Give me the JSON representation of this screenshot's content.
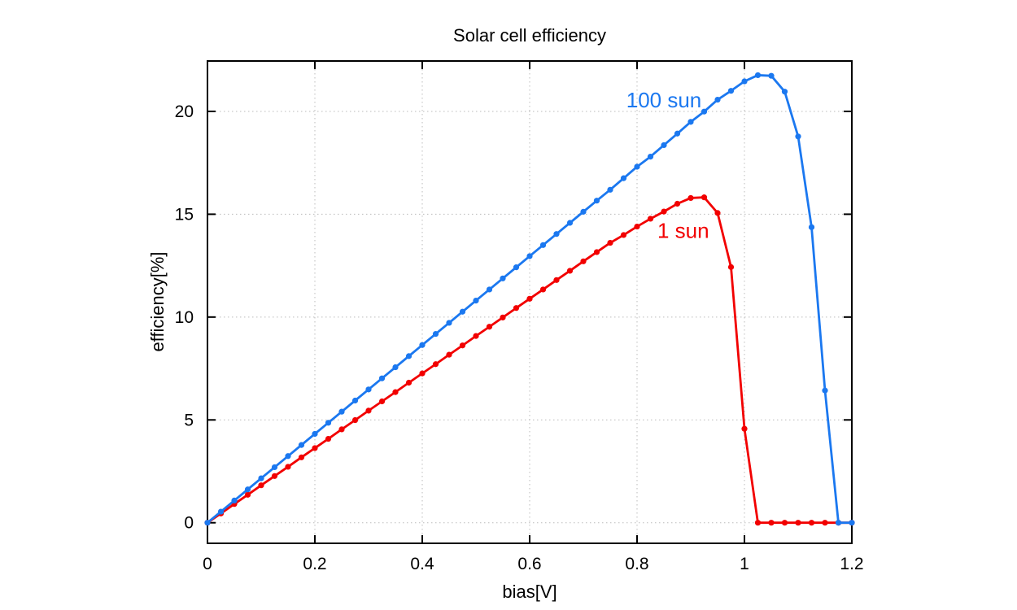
{
  "chart_data": {
    "type": "line",
    "title": "Solar cell efficiency",
    "xlabel": "bias[V]",
    "ylabel": "efficiency[%]",
    "xlim": [
      0,
      1.2
    ],
    "ylim": [
      -1.0,
      22.45
    ],
    "grid": "dotted",
    "legend_position": "inline-annotations",
    "colors": {
      "grid": "#bbbbbb",
      "axis": "#000000",
      "text": "#000000",
      "background": "#ffffff"
    },
    "x_ticks": {
      "values": [
        0,
        0.2,
        0.4,
        0.6,
        0.8,
        1.0,
        1.2
      ],
      "labels": [
        "0",
        "0.2",
        "0.4",
        "0.6",
        "0.8",
        "1",
        "1.2"
      ]
    },
    "y_ticks": {
      "values": [
        0,
        5,
        10,
        15,
        20
      ],
      "labels": [
        "0",
        "5",
        "10",
        "15",
        "20"
      ]
    },
    "x": [
      0,
      0.025,
      0.05,
      0.075,
      0.1,
      0.125,
      0.15,
      0.175,
      0.2,
      0.225,
      0.25,
      0.275,
      0.3,
      0.325,
      0.35,
      0.375,
      0.4,
      0.425,
      0.45,
      0.475,
      0.5,
      0.525,
      0.55,
      0.575,
      0.6,
      0.625,
      0.65,
      0.675,
      0.7,
      0.725,
      0.75,
      0.775,
      0.8,
      0.825,
      0.85,
      0.875,
      0.9,
      0.925,
      0.95,
      0.975,
      1.0,
      1.025,
      1.05,
      1.075,
      1.1,
      1.125,
      1.15,
      1.175,
      1.2
    ],
    "series": [
      {
        "name": "1 sun",
        "color": "#f20000",
        "values": [
          0.0,
          0.45,
          0.91,
          1.36,
          1.82,
          2.27,
          2.72,
          3.18,
          3.63,
          4.08,
          4.54,
          4.99,
          5.45,
          5.9,
          6.35,
          6.81,
          7.26,
          7.71,
          8.17,
          8.62,
          9.08,
          9.53,
          9.98,
          10.44,
          10.89,
          11.34,
          11.8,
          12.25,
          12.71,
          13.16,
          13.61,
          13.99,
          14.4,
          14.78,
          15.13,
          15.51,
          15.79,
          15.82,
          15.06,
          12.43,
          4.57,
          0.0,
          0.0,
          0.0,
          0.0,
          0.0,
          0.0,
          0.0,
          0.0
        ]
      },
      {
        "name": "100 sun",
        "color": "#1b78f0",
        "values": [
          0.0,
          0.54,
          1.08,
          1.62,
          2.16,
          2.7,
          3.24,
          3.78,
          4.32,
          4.86,
          5.4,
          5.94,
          6.48,
          7.02,
          7.56,
          8.1,
          8.64,
          9.18,
          9.72,
          10.26,
          10.8,
          11.34,
          11.88,
          12.42,
          12.96,
          13.5,
          14.04,
          14.58,
          15.12,
          15.66,
          16.19,
          16.75,
          17.31,
          17.8,
          18.36,
          18.92,
          19.49,
          19.99,
          20.57,
          21.0,
          21.46,
          21.76,
          21.73,
          20.96,
          18.78,
          14.37,
          6.43,
          0.0,
          0.0
        ]
      }
    ],
    "annotations": [
      {
        "text": "100 sun",
        "color": "#1b78f0",
        "x": 0.85,
        "y": 20.55
      },
      {
        "text": "1 sun",
        "color": "#f20000",
        "x": 0.886,
        "y": 14.2
      }
    ]
  }
}
